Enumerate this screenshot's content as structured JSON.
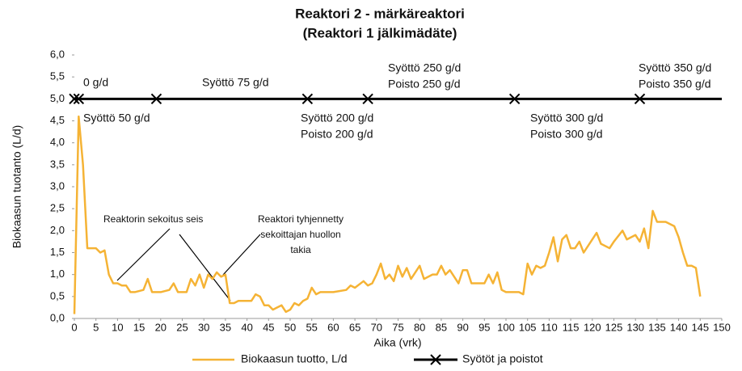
{
  "chart_data": {
    "type": "line",
    "title": "Reaktori 2 - märkäreaktori",
    "subtitle": "(Reaktori 1 jälkimädäte)",
    "x_label": "Aika (vrk)",
    "y_label": "Biokaasun tuotanto (L/d)",
    "xlim": [
      0,
      150
    ],
    "ylim": [
      0,
      6
    ],
    "xticks": [
      0,
      5,
      10,
      15,
      20,
      25,
      30,
      35,
      40,
      45,
      50,
      55,
      60,
      65,
      70,
      75,
      80,
      85,
      90,
      95,
      100,
      105,
      110,
      115,
      120,
      125,
      130,
      135,
      140,
      145,
      150
    ],
    "yticks": [
      {
        "value": 0,
        "label": "0,0"
      },
      {
        "value": 0.5,
        "label": "0,5"
      },
      {
        "value": 1,
        "label": "1,0"
      },
      {
        "value": 1.5,
        "label": "1,5"
      },
      {
        "value": 2,
        "label": "2,0"
      },
      {
        "value": 2.5,
        "label": "2,5"
      },
      {
        "value": 3,
        "label": "3,0"
      },
      {
        "value": 3.5,
        "label": "3,5"
      },
      {
        "value": 4,
        "label": "4,0"
      },
      {
        "value": 4.5,
        "label": "4,5"
      },
      {
        "value": 5,
        "label": "5,0"
      },
      {
        "value": 5.5,
        "label": "5,5"
      },
      {
        "value": 6,
        "label": "6,0"
      }
    ],
    "series": [
      {
        "name": "Biokaasun tuotto, L/d",
        "color": "#f5b335",
        "x": [
          0,
          1,
          2,
          3,
          4,
          5,
          6,
          7,
          8,
          9,
          10,
          11,
          12,
          13,
          14,
          16,
          17,
          18,
          20,
          22,
          23,
          24,
          26,
          27,
          28,
          29,
          30,
          31,
          32,
          33,
          34,
          35,
          36,
          37,
          38,
          40,
          41,
          42,
          43,
          44,
          45,
          46,
          47,
          48,
          49,
          50,
          51,
          52,
          53,
          54,
          55,
          56,
          57,
          60,
          63,
          64,
          65,
          67,
          68,
          69,
          70,
          71,
          72,
          73,
          74,
          75,
          76,
          77,
          78,
          80,
          81,
          83,
          84,
          85,
          86,
          87,
          89,
          90,
          91,
          92,
          95,
          96,
          97,
          98,
          99,
          100,
          103,
          104,
          105,
          106,
          107,
          108,
          109,
          110,
          111,
          112,
          113,
          114,
          115,
          116,
          117,
          118,
          120,
          121,
          122,
          124,
          125,
          127,
          128,
          130,
          131,
          132,
          133,
          134,
          135,
          137,
          139,
          140,
          141,
          142,
          143,
          144,
          145
        ],
        "values": [
          0.1,
          4.6,
          3.5,
          1.6,
          1.6,
          1.6,
          1.5,
          1.55,
          1.0,
          0.8,
          0.8,
          0.75,
          0.75,
          0.6,
          0.6,
          0.65,
          0.9,
          0.6,
          0.6,
          0.65,
          0.8,
          0.6,
          0.6,
          0.9,
          0.75,
          1.0,
          0.7,
          1.0,
          0.9,
          1.05,
          0.95,
          1.0,
          0.35,
          0.35,
          0.4,
          0.4,
          0.4,
          0.55,
          0.5,
          0.3,
          0.3,
          0.2,
          0.25,
          0.3,
          0.15,
          0.2,
          0.35,
          0.3,
          0.4,
          0.45,
          0.7,
          0.55,
          0.6,
          0.6,
          0.65,
          0.75,
          0.7,
          0.85,
          0.75,
          0.8,
          1.0,
          1.25,
          0.9,
          1.0,
          0.85,
          1.2,
          0.95,
          1.15,
          0.9,
          1.2,
          0.9,
          1.0,
          1.0,
          1.2,
          1.0,
          1.1,
          0.8,
          1.1,
          1.1,
          0.8,
          0.8,
          1.0,
          0.8,
          1.05,
          0.65,
          0.6,
          0.6,
          0.55,
          1.25,
          1.0,
          1.2,
          1.15,
          1.2,
          1.5,
          1.85,
          1.3,
          1.8,
          1.9,
          1.6,
          1.6,
          1.75,
          1.5,
          1.8,
          1.95,
          1.7,
          1.6,
          1.75,
          2.0,
          1.8,
          1.9,
          1.75,
          2.05,
          1.6,
          2.45,
          2.2,
          2.2,
          2.1,
          1.85,
          1.5,
          1.2,
          1.2,
          1.15,
          0.5
        ]
      },
      {
        "name": "Syötöt ja poistot",
        "color": "#000000",
        "marker": "x",
        "x": [
          0,
          1,
          19,
          54,
          68,
          102,
          131
        ],
        "values": [
          5,
          5,
          5,
          5,
          5,
          5,
          5
        ]
      }
    ],
    "annotations": [
      "0 g/d",
      "Syöttö 75 g/d",
      "Syöttö 50 g/d",
      "Syöttö 200 g/d",
      "Poisto 200 g/d",
      "Syöttö 250 g/d",
      "Poisto 250 g/d",
      "Syöttö 300 g/d",
      "Poisto 300 g/d",
      "Syöttö 350 g/d",
      "Poisto 350 g/d",
      "Reaktorin sekoitus seis",
      "Reaktori tyhjennetty",
      "sekoittajan huollon",
      "takia"
    ]
  }
}
